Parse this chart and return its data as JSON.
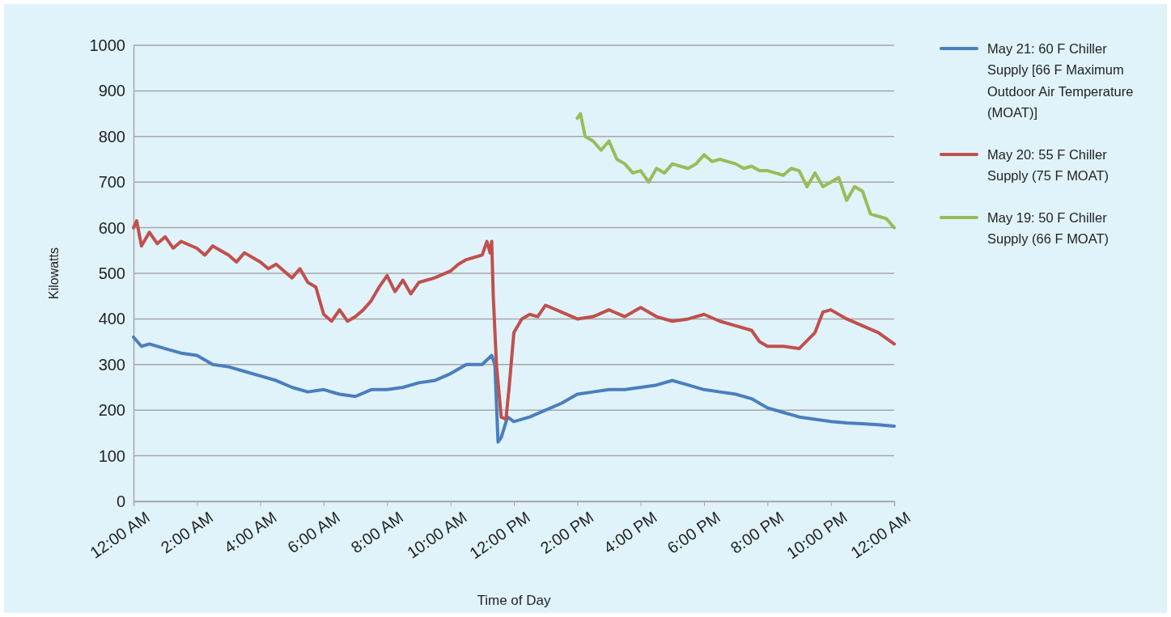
{
  "chart_data": {
    "type": "line",
    "xlabel": "Time of Day",
    "ylabel": "Kilowatts",
    "xlim": [
      0,
      24
    ],
    "ylim": [
      0,
      1000
    ],
    "xticks": [
      {
        "value": 0,
        "label": "12:00 AM"
      },
      {
        "value": 2,
        "label": "2:00 AM"
      },
      {
        "value": 4,
        "label": "4:00 AM"
      },
      {
        "value": 6,
        "label": "6:00 AM"
      },
      {
        "value": 8,
        "label": "8:00 AM"
      },
      {
        "value": 10,
        "label": "10:00 AM"
      },
      {
        "value": 12,
        "label": "12:00 PM"
      },
      {
        "value": 14,
        "label": "2:00 PM"
      },
      {
        "value": 16,
        "label": "4:00 PM"
      },
      {
        "value": 18,
        "label": "6:00 PM"
      },
      {
        "value": 20,
        "label": "8:00 PM"
      },
      {
        "value": 22,
        "label": "10:00 PM"
      },
      {
        "value": 24,
        "label": "12:00 AM"
      }
    ],
    "yticks": [
      0,
      100,
      200,
      300,
      400,
      500,
      600,
      700,
      800,
      900,
      1000
    ],
    "grid": "y",
    "legend": "right",
    "marker": "none",
    "line_style": "solid",
    "series": [
      {
        "name": "May 21: 60 F Chiller Supply [66 F Maximum Outdoor Air Temperature (MOAT)]",
        "color": "#4a7ebf",
        "x": [
          0,
          0.25,
          0.5,
          1,
          1.5,
          2,
          2.5,
          3,
          3.5,
          4,
          4.5,
          5,
          5.5,
          6,
          6.5,
          7,
          7.5,
          8,
          8.5,
          9,
          9.5,
          10,
          10.5,
          11,
          11.3,
          11.4,
          11.5,
          11.6,
          11.8,
          12,
          12.5,
          13,
          13.5,
          14,
          14.5,
          15,
          15.5,
          16,
          16.5,
          17,
          17.5,
          18,
          18.5,
          19,
          19.5,
          20,
          20.5,
          21,
          21.5,
          22,
          22.5,
          23,
          23.5,
          24
        ],
        "values": [
          360,
          340,
          345,
          335,
          325,
          320,
          300,
          295,
          285,
          275,
          265,
          250,
          240,
          245,
          235,
          230,
          245,
          245,
          250,
          260,
          265,
          280,
          300,
          300,
          320,
          300,
          130,
          140,
          185,
          175,
          185,
          200,
          215,
          235,
          240,
          245,
          245,
          250,
          255,
          265,
          255,
          245,
          240,
          235,
          225,
          205,
          195,
          185,
          180,
          175,
          172,
          170,
          168,
          165
        ]
      },
      {
        "name": "May 20: 55 F Chiller Supply (75 F MOAT)",
        "color": "#c0504d",
        "x": [
          0,
          0.1,
          0.25,
          0.5,
          0.75,
          1,
          1.25,
          1.5,
          2,
          2.25,
          2.5,
          3,
          3.25,
          3.5,
          4,
          4.25,
          4.5,
          5,
          5.25,
          5.5,
          5.75,
          6,
          6.25,
          6.5,
          6.75,
          7,
          7.25,
          7.5,
          7.75,
          8,
          8.25,
          8.5,
          8.75,
          9,
          9.5,
          10,
          10.25,
          10.5,
          10.75,
          11,
          11.15,
          11.25,
          11.3,
          11.35,
          11.45,
          11.6,
          11.75,
          11.85,
          12,
          12.25,
          12.5,
          12.75,
          13,
          13.5,
          14,
          14.5,
          15,
          15.5,
          16,
          16.5,
          17,
          17.5,
          18,
          18.5,
          19,
          19.5,
          19.75,
          20,
          20.5,
          21,
          21.5,
          21.75,
          22,
          22.5,
          23,
          23.5,
          24
        ],
        "values": [
          600,
          615,
          560,
          590,
          565,
          580,
          555,
          570,
          555,
          540,
          560,
          540,
          525,
          545,
          525,
          510,
          520,
          490,
          510,
          480,
          470,
          410,
          395,
          420,
          395,
          405,
          420,
          440,
          470,
          495,
          460,
          485,
          455,
          480,
          490,
          505,
          520,
          530,
          535,
          540,
          570,
          545,
          570,
          450,
          300,
          185,
          180,
          250,
          370,
          400,
          410,
          405,
          430,
          415,
          400,
          405,
          420,
          405,
          425,
          405,
          395,
          400,
          410,
          395,
          385,
          375,
          350,
          340,
          340,
          335,
          370,
          415,
          420,
          400,
          385,
          370,
          345
        ]
      },
      {
        "name": "May 19: 50 F Chiller Supply (66 F MOAT)",
        "color": "#9bbb59",
        "x": [
          14,
          14.1,
          14.25,
          14.5,
          14.75,
          15,
          15.25,
          15.5,
          15.75,
          16,
          16.25,
          16.5,
          16.75,
          17,
          17.25,
          17.5,
          17.75,
          18,
          18.25,
          18.5,
          18.75,
          19,
          19.25,
          19.5,
          19.75,
          20,
          20.25,
          20.5,
          20.75,
          21,
          21.25,
          21.5,
          21.75,
          22,
          22.25,
          22.5,
          22.75,
          23,
          23.25,
          23.5,
          23.75,
          24
        ],
        "values": [
          840,
          850,
          800,
          790,
          770,
          790,
          750,
          740,
          720,
          725,
          700,
          730,
          720,
          740,
          735,
          730,
          740,
          760,
          745,
          750,
          745,
          740,
          730,
          735,
          725,
          725,
          720,
          715,
          730,
          725,
          690,
          720,
          690,
          700,
          710,
          660,
          690,
          680,
          630,
          625,
          620,
          600
        ]
      }
    ]
  }
}
